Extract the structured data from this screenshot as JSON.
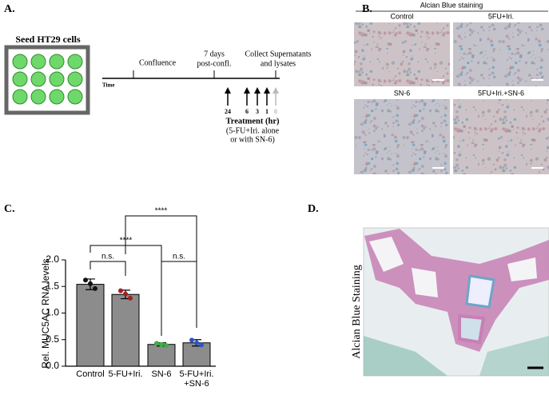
{
  "panel_labels": [
    "A.",
    "B.",
    "C.",
    "D."
  ],
  "panel_a": {
    "plate_title": "Seed HT29 cells",
    "time_label": "Time",
    "confluence": "Confluence",
    "post_confluence": [
      "7 days",
      "post-confl."
    ],
    "collect": [
      "Collect Supernatants",
      "and lysates"
    ],
    "timepoints": [
      24,
      6,
      3,
      1,
      0
    ],
    "treatment_title": "Treatment (hr)",
    "treatment_note": [
      "(5-FU+Iri. alone",
      "or with SN-6)"
    ]
  },
  "panel_b": {
    "title": "Alcian Blue staining",
    "panels": [
      "Control",
      "5FU+Iri.",
      "SN-6",
      "5FU+Iri.+SN-6"
    ]
  },
  "chart_data": {
    "type": "bar",
    "ylabel": "Rel. MUC5AC RNA levels",
    "categories": [
      "Control",
      "5-FU+Iri.",
      "SN-6",
      "5-FU+Iri. +SN-6"
    ],
    "values": [
      1.54,
      1.35,
      0.41,
      0.44
    ],
    "errors": [
      0.1,
      0.08,
      0.03,
      0.06
    ],
    "points": [
      [
        1.62,
        1.55,
        1.46
      ],
      [
        1.42,
        1.36,
        1.28
      ],
      [
        0.43,
        0.41,
        0.39
      ],
      [
        0.49,
        0.44,
        0.4
      ]
    ],
    "point_colors": [
      "#111111",
      "#a32020",
      "#3cb043",
      "#2a54c8"
    ],
    "color": "#8c8c8c",
    "ylim": [
      0,
      2
    ],
    "yticks": [
      {
        "value": 0,
        "label": "0.0"
      },
      {
        "value": 0.5,
        "label": "0.5"
      },
      {
        "value": 1,
        "label": "1.0"
      },
      {
        "value": 1.5,
        "label": "1.5"
      },
      {
        "value": 2,
        "label": "2.0"
      }
    ],
    "annotations": [
      {
        "text": "n.s.",
        "from": 0,
        "to": 1
      },
      {
        "text": "****",
        "from": 0,
        "to": 2
      },
      {
        "text": "n.s.",
        "from": 2,
        "to": 3
      },
      {
        "text": "****",
        "from": 1,
        "to": 3
      }
    ]
  },
  "panel_d": {
    "ylabel": "Alcian Blue Staining"
  }
}
